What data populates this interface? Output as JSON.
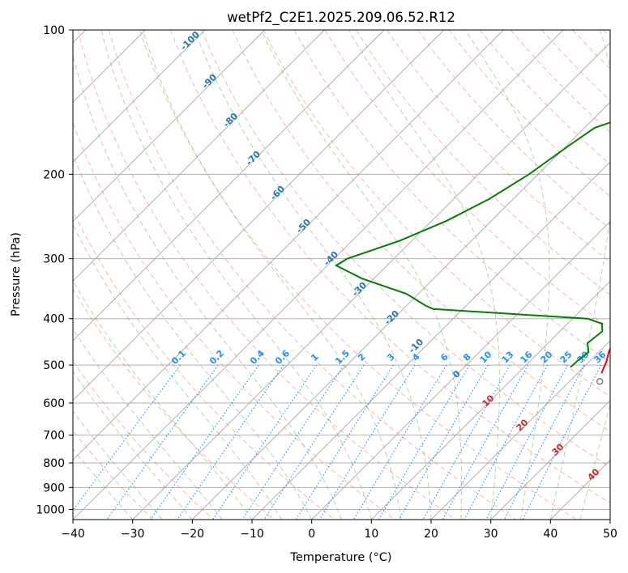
{
  "chart_data": {
    "type": "line",
    "title": "wetPf2_C2E1.2025.209.06.52.R12",
    "xlabel": "Temperature (°C)",
    "ylabel": "Pressure (hPa)",
    "xlim": [
      -40,
      50
    ],
    "ylim": [
      1050,
      100
    ],
    "y_scale": "log",
    "x_ticks": [
      -40,
      -30,
      -20,
      -10,
      0,
      10,
      20,
      30,
      40,
      50
    ],
    "y_ticks": [
      100,
      200,
      300,
      400,
      500,
      600,
      700,
      800,
      900,
      1000
    ],
    "grid": true,
    "skew": 45,
    "colors": {
      "temperature": "#ff0000",
      "dewpoint": "#008000",
      "dry_adiabat": "#f08060",
      "moist_adiabat": "#6ab04c",
      "mixing_ratio": "#1e90ff",
      "isotherm": "#000000"
    },
    "series": [
      {
        "role": "temperature",
        "points": [
          [
            24.0,
            520
          ],
          [
            23.4,
            505
          ],
          [
            22.8,
            490
          ],
          [
            21.7,
            470
          ],
          [
            20.8,
            450
          ],
          [
            20.4,
            430
          ],
          [
            20.6,
            410
          ],
          [
            21.3,
            395
          ],
          [
            20.9,
            370
          ],
          [
            20.6,
            340
          ],
          [
            19.8,
            310
          ],
          [
            18.5,
            280
          ],
          [
            16.5,
            250
          ],
          [
            14.3,
            225
          ],
          [
            12.4,
            200
          ],
          [
            10.6,
            180
          ],
          [
            8.8,
            160
          ],
          [
            6.6,
            140
          ],
          [
            5.0,
            125
          ],
          [
            5.2,
            110
          ],
          [
            6.2,
            100
          ]
        ]
      },
      {
        "role": "dewpoint",
        "points": [
          [
            17.8,
            505
          ],
          [
            17.9,
            490
          ],
          [
            18.3,
            470
          ],
          [
            16.6,
            450
          ],
          [
            17.1,
            425
          ],
          [
            15.8,
            410
          ],
          [
            12.5,
            400
          ],
          [
            -15.0,
            382
          ],
          [
            -17.0,
            375
          ],
          [
            -22.0,
            355
          ],
          [
            -32.0,
            330
          ],
          [
            -38.5,
            310
          ],
          [
            -37.8,
            300
          ],
          [
            -32.0,
            275
          ],
          [
            -27.5,
            250
          ],
          [
            -24.0,
            225
          ],
          [
            -21.5,
            200
          ],
          [
            -19.7,
            175
          ],
          [
            -18.3,
            160
          ],
          [
            -16.2,
            155
          ],
          [
            -11.2,
            152
          ],
          [
            -6.0,
            145
          ],
          [
            -1.5,
            130
          ],
          [
            3.0,
            110
          ],
          [
            4.3,
            100
          ]
        ]
      }
    ],
    "dry_adiabat_labels": [
      "-100",
      "-90",
      "-80",
      "-70",
      "-60",
      "-50",
      "-40",
      "-30",
      "-20",
      "-10",
      "0"
    ],
    "mixing_ratio_labels": [
      "0.1",
      "0.2",
      "0.4",
      "0.6",
      "1",
      "1.5",
      "2",
      "3",
      "4",
      "6",
      "8",
      "10",
      "13",
      "16",
      "20",
      "25",
      "30",
      "36"
    ],
    "moist_adiabat_labels": [
      "10",
      "20",
      "30",
      "40"
    ]
  }
}
